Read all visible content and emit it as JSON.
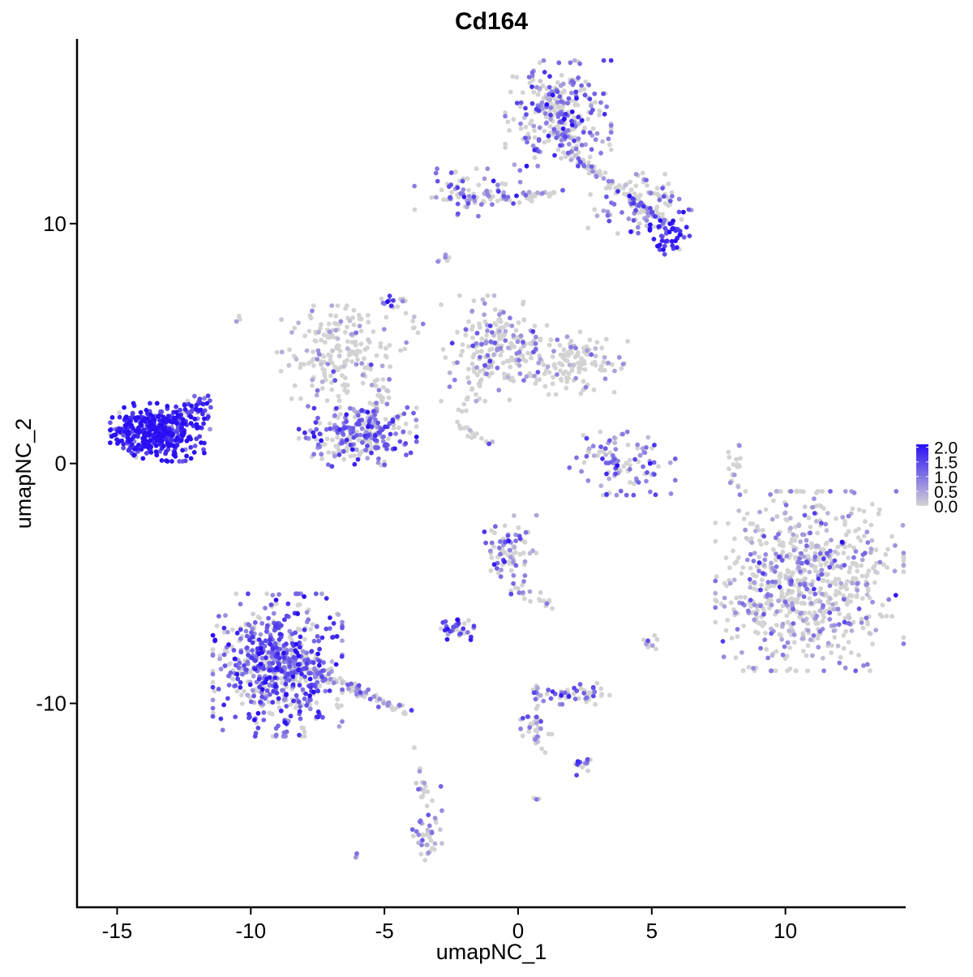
{
  "chart_data": {
    "type": "scatter",
    "title": "Cd164",
    "xlabel": "umapNC_1",
    "ylabel": "umapNC_2",
    "xlim": [
      -16.5,
      14.5
    ],
    "ylim": [
      -18.5,
      17.7
    ],
    "xticks": [
      -15,
      -10,
      -5,
      0,
      5,
      10
    ],
    "yticks": [
      -10,
      0,
      10
    ],
    "xtick_labels": [
      "-15",
      "-10",
      "-5",
      "0",
      "5",
      "10"
    ],
    "ytick_labels": [
      "-10",
      "0",
      "10"
    ],
    "grid": false,
    "legend": {
      "position": "right",
      "ticks": [
        2.0,
        1.5,
        1.0,
        0.5,
        0.0
      ],
      "tick_labels": [
        "2.0",
        "1.5",
        "1.0",
        "0.5",
        "0.0"
      ],
      "low_color": "#d3d3d3",
      "high_color": "#2a0ff5",
      "range": [
        0.0,
        2.1
      ]
    },
    "clusters": [
      {
        "center": [
          -13.5,
          1.3
        ],
        "spread": [
          0.8,
          0.55
        ],
        "count": 420,
        "mean_expression": 1.7
      },
      {
        "center": [
          -11.9,
          2.2
        ],
        "spread": [
          0.35,
          0.35
        ],
        "count": 25,
        "mean_expression": 1.4
      },
      {
        "center": [
          -6.0,
          1.2
        ],
        "spread": [
          1.0,
          0.6
        ],
        "count": 260,
        "mean_expression": 0.9
      },
      {
        "center": [
          -6.6,
          4.6
        ],
        "spread": [
          1.1,
          0.9
        ],
        "count": 200,
        "mean_expression": 0.15
      },
      {
        "center": [
          -0.9,
          4.8
        ],
        "spread": [
          0.9,
          1.0
        ],
        "count": 200,
        "mean_expression": 0.35
      },
      {
        "center": [
          1.9,
          4.2
        ],
        "spread": [
          1.0,
          0.6
        ],
        "count": 140,
        "mean_expression": 0.3
      },
      {
        "center": [
          3.9,
          0.0
        ],
        "spread": [
          0.9,
          0.6
        ],
        "count": 90,
        "mean_expression": 0.8
      },
      {
        "center": [
          1.5,
          14.6
        ],
        "spread": [
          0.9,
          1.0
        ],
        "count": 300,
        "mean_expression": 0.9
      },
      {
        "center": [
          -1.9,
          11.3
        ],
        "spread": [
          0.9,
          0.45
        ],
        "count": 80,
        "mean_expression": 0.8
      },
      {
        "center": [
          4.6,
          10.8
        ],
        "spread": [
          0.9,
          0.7
        ],
        "count": 90,
        "mean_expression": 0.7
      },
      {
        "center": [
          5.7,
          9.6
        ],
        "spread": [
          0.35,
          0.4
        ],
        "count": 50,
        "mean_expression": 1.6
      },
      {
        "center": [
          10.9,
          -4.9
        ],
        "spread": [
          1.6,
          1.7
        ],
        "count": 750,
        "mean_expression": 0.45
      },
      {
        "center": [
          -9.0,
          -8.4
        ],
        "spread": [
          1.1,
          1.35
        ],
        "count": 620,
        "mean_expression": 1.1
      },
      {
        "center": [
          -0.3,
          -3.7
        ],
        "spread": [
          0.45,
          0.7
        ],
        "count": 80,
        "mean_expression": 0.8
      },
      {
        "center": [
          -2.3,
          -6.9
        ],
        "spread": [
          0.3,
          0.25
        ],
        "count": 35,
        "mean_expression": 1.2
      },
      {
        "center": [
          2.4,
          -9.6
        ],
        "spread": [
          0.6,
          0.2
        ],
        "count": 50,
        "mean_expression": 0.8
      },
      {
        "center": [
          -3.4,
          -15.0
        ],
        "spread": [
          0.25,
          0.7
        ],
        "count": 45,
        "mean_expression": 0.5
      },
      {
        "center": [
          -4.8,
          6.8
        ],
        "spread": [
          0.15,
          0.2
        ],
        "count": 10,
        "mean_expression": 1.5
      },
      {
        "center": [
          5.0,
          -7.4
        ],
        "spread": [
          0.2,
          0.15
        ],
        "count": 10,
        "mean_expression": 1.1
      },
      {
        "center": [
          -2.7,
          8.6
        ],
        "spread": [
          0.15,
          0.1
        ],
        "count": 6,
        "mean_expression": 0.5
      },
      {
        "center": [
          -10.5,
          6.0
        ],
        "spread": [
          0.1,
          0.1
        ],
        "count": 3,
        "mean_expression": 0.8
      },
      {
        "center": [
          2.4,
          -12.6
        ],
        "spread": [
          0.25,
          0.2
        ],
        "count": 14,
        "mean_expression": 0.9
      },
      {
        "center": [
          0.6,
          -11.2
        ],
        "spread": [
          0.3,
          0.5
        ],
        "count": 20,
        "mean_expression": 0.6
      },
      {
        "center": [
          8.2,
          -0.1
        ],
        "spread": [
          0.15,
          0.4
        ],
        "count": 10,
        "mean_expression": 0.05
      },
      {
        "center": [
          -6.0,
          -16.3
        ],
        "spread": [
          0.1,
          0.1
        ],
        "count": 3,
        "mean_expression": 0.5
      },
      {
        "center": [
          0.7,
          -14.0
        ],
        "spread": [
          0.1,
          0.1
        ],
        "count": 3,
        "mean_expression": 0.5
      }
    ],
    "trails": [
      {
        "from": [
          -13.2,
          1.7
        ],
        "to": [
          -11.6,
          2.7
        ],
        "count": 30,
        "mean_expression": 1.3
      },
      {
        "from": [
          -9.1,
          -8.0
        ],
        "to": [
          -4.0,
          -10.4
        ],
        "count": 120,
        "mean_expression": 0.7
      },
      {
        "from": [
          -1.5,
          11.0
        ],
        "to": [
          1.5,
          11.3
        ],
        "count": 40,
        "mean_expression": 0.5
      },
      {
        "from": [
          1.8,
          13.0
        ],
        "to": [
          5.6,
          10.0
        ],
        "count": 90,
        "mean_expression": 0.5
      },
      {
        "from": [
          -5.0,
          3.5
        ],
        "to": [
          -5.6,
          0.6
        ],
        "count": 35,
        "mean_expression": 0.3
      },
      {
        "from": [
          -1.1,
          4.0
        ],
        "to": [
          -2.3,
          1.8
        ],
        "count": 20,
        "mean_expression": 0.1
      },
      {
        "from": [
          -2.5,
          1.8
        ],
        "to": [
          -1.1,
          0.8
        ],
        "count": 14,
        "mean_expression": 0.2
      },
      {
        "from": [
          -4.4,
          7.0
        ],
        "to": [
          -3.6,
          5.3
        ],
        "count": 12,
        "mean_expression": 0.5
      },
      {
        "from": [
          2.4,
          1.2
        ],
        "to": [
          3.8,
          0.0
        ],
        "count": 12,
        "mean_expression": 0.6
      },
      {
        "from": [
          0.7,
          -9.3
        ],
        "to": [
          0.7,
          -11.8
        ],
        "count": 25,
        "mean_expression": 0.5
      },
      {
        "from": [
          -3.9,
          -11.8
        ],
        "to": [
          -3.6,
          -13.8
        ],
        "count": 12,
        "mean_expression": 0.2
      },
      {
        "from": [
          8.0,
          -0.6
        ],
        "to": [
          8.3,
          0.8
        ],
        "count": 8,
        "mean_expression": 0.05
      },
      {
        "from": [
          -0.2,
          -5.2
        ],
        "to": [
          1.2,
          -5.9
        ],
        "count": 20,
        "mean_expression": 0.5
      }
    ]
  }
}
